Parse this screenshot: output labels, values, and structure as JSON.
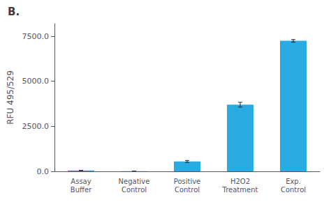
{
  "chart_data": {
    "type": "bar",
    "annotation": "B.",
    "ylabel": "RFU 495/529",
    "categories": [
      "Assay\nBuffer",
      "Negative\nControl",
      "Positive\nControl",
      "H2O2\nTreatment",
      "Exp.\nControl"
    ],
    "values": [
      50,
      8,
      550,
      3700,
      7250
    ],
    "errors": [
      8,
      3,
      55,
      130,
      70
    ],
    "color": "#29ABE2",
    "ylim": [
      0,
      8200
    ],
    "yticks": [
      {
        "value": 0,
        "label": "0.0"
      },
      {
        "value": 2500,
        "label": "2500.0"
      },
      {
        "value": 5000,
        "label": "5000.0"
      },
      {
        "value": 7500,
        "label": "7500.0"
      }
    ],
    "grid": false
  }
}
